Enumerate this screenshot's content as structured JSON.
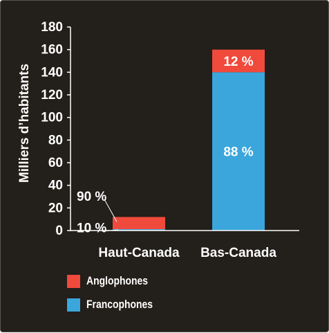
{
  "chart_data": {
    "type": "bar",
    "stacked": true,
    "ylabel": "Milliers d’habitants",
    "xlabel": "",
    "ylim": [
      0,
      180
    ],
    "yticks": [
      0,
      20,
      40,
      60,
      80,
      100,
      120,
      140,
      160,
      180
    ],
    "grid": false,
    "legend_position": "bottom-left",
    "categories": [
      "Haut-Canada",
      "Bas-Canada"
    ],
    "series": [
      {
        "name": "Francophones",
        "color": "#3aa6dc",
        "values": [
          1.2,
          140
        ]
      },
      {
        "name": "Anglophones",
        "color": "#f04a3c",
        "values": [
          10.8,
          20
        ]
      }
    ],
    "data_labels": [
      {
        "category": "Haut-Canada",
        "series": "Anglophones",
        "text": "90 %"
      },
      {
        "category": "Haut-Canada",
        "series": "Francophones",
        "text": "10 %"
      },
      {
        "category": "Bas-Canada",
        "series": "Anglophones",
        "text": "12 %"
      },
      {
        "category": "Bas-Canada",
        "series": "Francophones",
        "text": "88 %"
      }
    ]
  },
  "colors": {
    "background": "#231f1a",
    "text": "#ffffff",
    "axis": "#ffffff"
  }
}
